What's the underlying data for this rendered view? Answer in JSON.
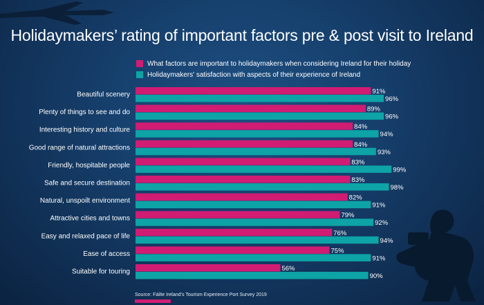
{
  "title": "Holidaymakers’ rating of important factors pre & post visit to Ireland",
  "colors": {
    "important": "#d11c73",
    "satisfaction": "#0ea3a6",
    "background": "#163f6c"
  },
  "legend": [
    {
      "label": "What factors are important to holidaymakers when considering Ireland for their holiday",
      "color": "#d11c73"
    },
    {
      "label": "Holidaymakers' satisfaction with aspects of their experience of Ireland",
      "color": "#0ea3a6"
    }
  ],
  "source": "Source: Fáilte Ireland’s Tourism Experience Port Survey 2019",
  "chart_data": {
    "type": "bar",
    "orientation": "horizontal",
    "title": "Holidaymakers’ rating of important factors pre & post visit to Ireland",
    "categories": [
      "Beautiful scenery",
      "Plenty of things to see and do",
      "Interesting history and culture",
      "Good range of natural attractions",
      "Friendly, hospitable people",
      "Safe and secure destination",
      "Natural, unspoilt environment",
      "Attractive cities and towns",
      "Easy and relaxed pace of life",
      "Ease of access",
      "Suitable for touring"
    ],
    "series": [
      {
        "name": "What factors are important to holidaymakers when considering Ireland for their holiday",
        "values": [
          91,
          89,
          84,
          84,
          83,
          83,
          82,
          79,
          76,
          75,
          56
        ]
      },
      {
        "name": "Holidaymakers' satisfaction with aspects of their experience of Ireland",
        "values": [
          96,
          96,
          94,
          93,
          99,
          98,
          91,
          92,
          94,
          91,
          90
        ]
      }
    ],
    "unit": "%",
    "xlim": [
      0,
      100
    ],
    "grid": false,
    "legend_position": "top"
  }
}
